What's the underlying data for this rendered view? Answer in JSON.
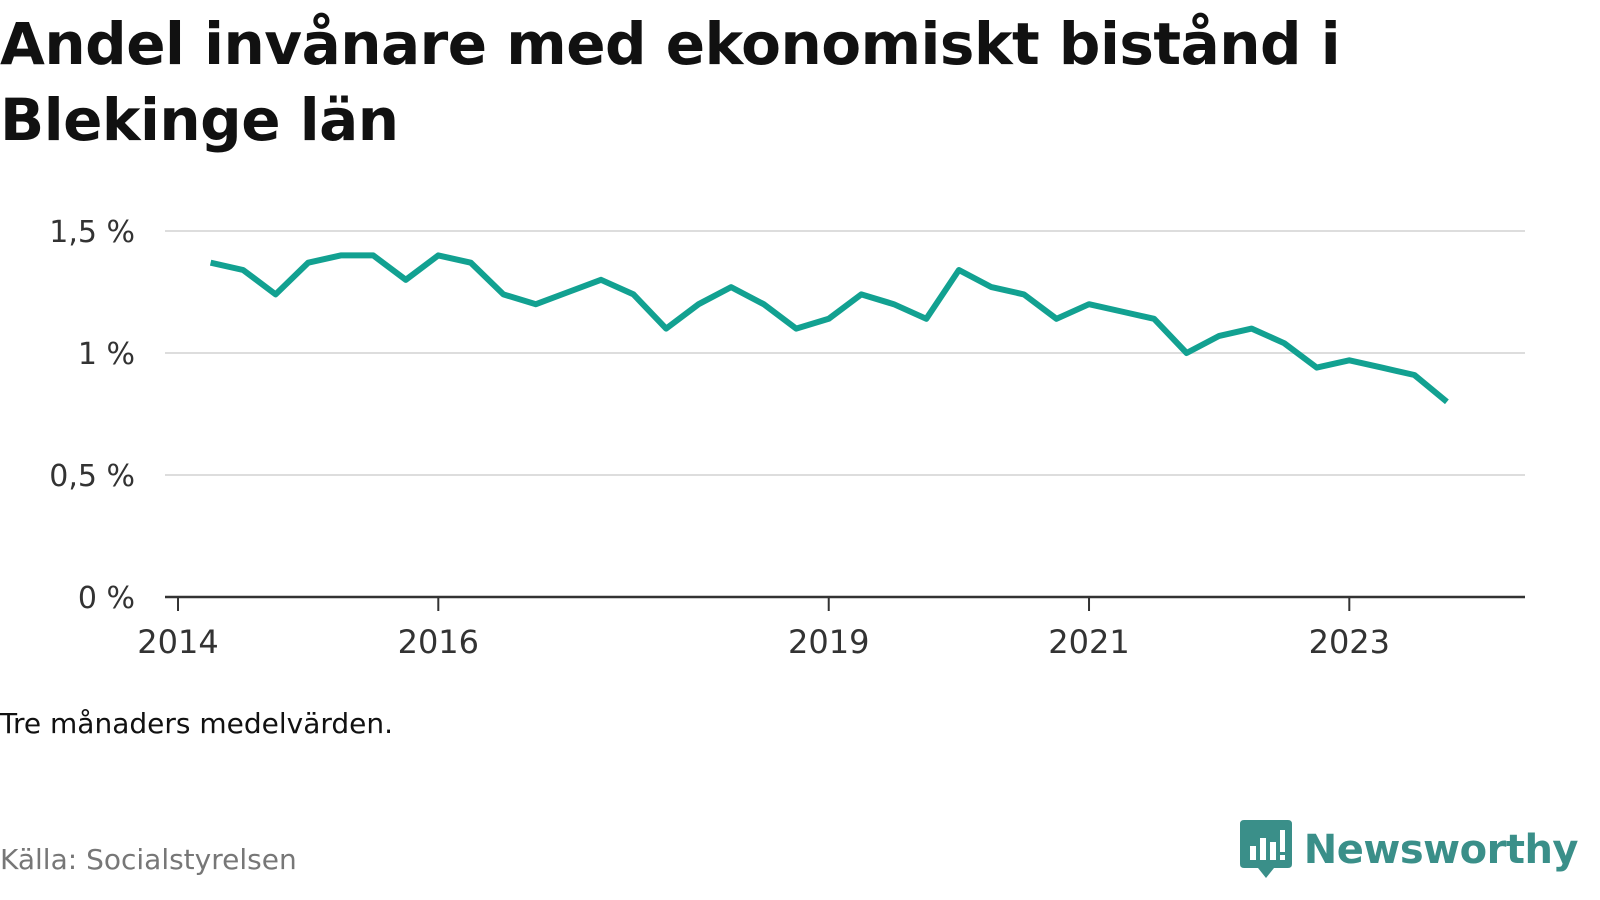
{
  "title": "Andel invånare med ekonomiskt bistånd i Blekinge län",
  "note": "Tre månaders medelvärden.",
  "source": "Källa: Socialstyrelsen",
  "brand": {
    "name": "Newsworthy",
    "color": "#3a8f89",
    "icon": "newsworthy-chart-bubble-icon"
  },
  "colors": {
    "line": "#12a191",
    "grid": "#dddddd",
    "axis": "#333333"
  },
  "chart_data": {
    "type": "line",
    "title": "Andel invånare med ekonomiskt bistånd i Blekinge län",
    "xlabel": "",
    "ylabel": "",
    "ylim": [
      0,
      1.5
    ],
    "y_ticks": [
      0,
      0.5,
      1,
      1.5
    ],
    "y_tick_labels": [
      "0 %",
      "0,5 %",
      "1 %",
      "1,5 %"
    ],
    "x_ticks": [
      2014,
      2016,
      2019,
      2021,
      2023
    ],
    "x_tick_labels": [
      "2014",
      "2016",
      "2019",
      "2021",
      "2023"
    ],
    "grid": true,
    "legend": "none",
    "series": [
      {
        "x": [
          "2014-04",
          "2014-07",
          "2014-10",
          "2015-01",
          "2015-04",
          "2015-07",
          "2015-10",
          "2016-01",
          "2016-04",
          "2016-07",
          "2016-10",
          "2017-01",
          "2017-04",
          "2017-07",
          "2017-10",
          "2018-01",
          "2018-04",
          "2018-07",
          "2018-10",
          "2019-01",
          "2019-04",
          "2019-07",
          "2019-10",
          "2020-01",
          "2020-04",
          "2020-07",
          "2020-10",
          "2021-01",
          "2021-04",
          "2021-07",
          "2021-10",
          "2022-01",
          "2022-04",
          "2022-07",
          "2022-10",
          "2023-01",
          "2023-04",
          "2023-07",
          "2023-10"
        ],
        "values": [
          1.37,
          1.34,
          1.24,
          1.37,
          1.4,
          1.4,
          1.3,
          1.4,
          1.37,
          1.24,
          1.2,
          1.25,
          1.3,
          1.24,
          1.1,
          1.2,
          1.27,
          1.2,
          1.1,
          1.14,
          1.24,
          1.2,
          1.14,
          1.34,
          1.27,
          1.24,
          1.14,
          1.2,
          1.17,
          1.14,
          1.0,
          1.07,
          1.1,
          1.04,
          0.94,
          0.97,
          0.94,
          0.91,
          0.8
        ]
      }
    ]
  }
}
